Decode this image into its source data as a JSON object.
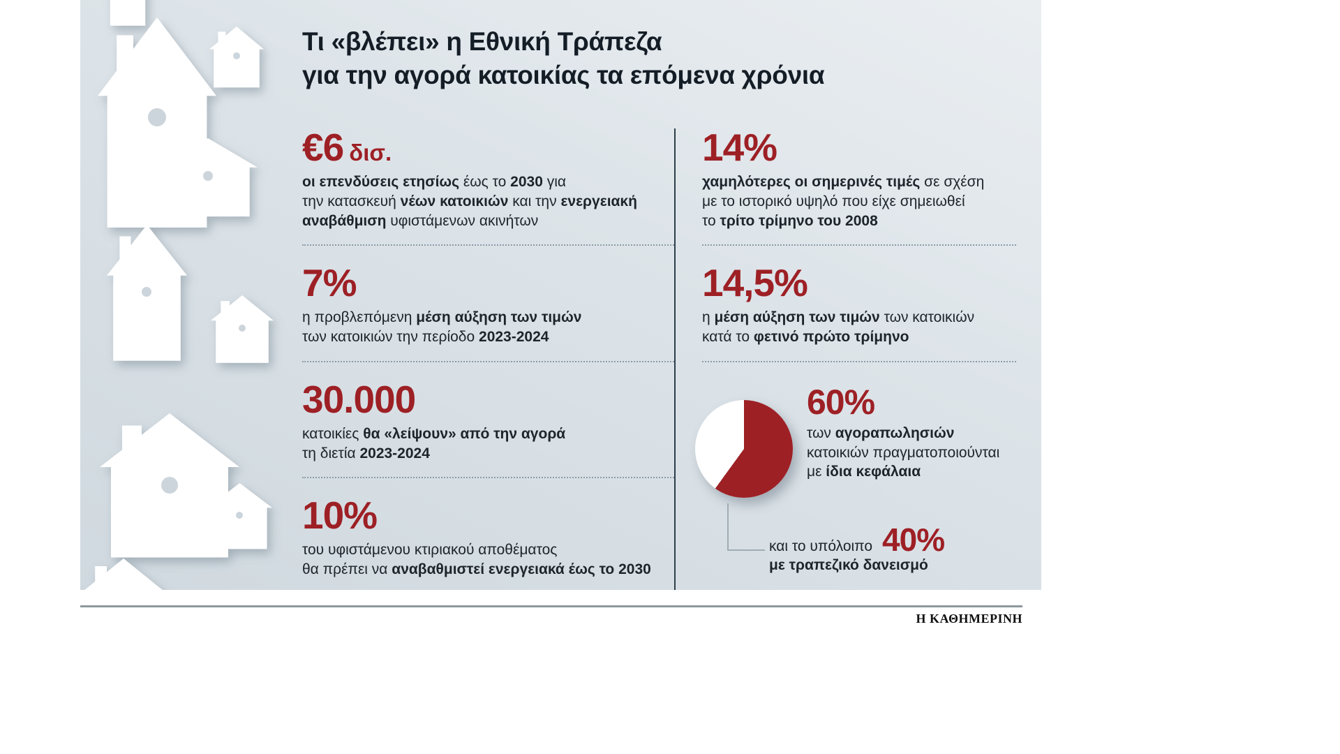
{
  "title": {
    "line1": "Τι «βλέπει» η Εθνική Τράπεζα",
    "line2": "για την αγορά κατοικίας τα επόμενα χρόνια"
  },
  "left_column": {
    "stats": [
      {
        "id": "annual-investments",
        "value": "€6",
        "unit": "δισ.",
        "desc": [
          {
            "t": "οι επενδύσεις ετησίως",
            "b": true
          },
          {
            "t": " έως το ",
            "b": false
          },
          {
            "t": "2030",
            "b": true
          },
          {
            "t": " για\nτην κατασκευή ",
            "b": false
          },
          {
            "t": "νέων κατοικιών",
            "b": true
          },
          {
            "t": " και την ",
            "b": false
          },
          {
            "t": "ενεργειακή\nαναβάθμιση",
            "b": true
          },
          {
            "t": " υφιστάμενων ακινήτων",
            "b": false
          }
        ]
      },
      {
        "id": "forecast-price-increase",
        "value": "7%",
        "desc": [
          {
            "t": "η προβλεπόμενη ",
            "b": false
          },
          {
            "t": "μέση αύξηση των τιμών",
            "b": true
          },
          {
            "t": "\nτων κατοικιών την περίοδο ",
            "b": false
          },
          {
            "t": "2023-2024",
            "b": true
          }
        ]
      },
      {
        "id": "missing-homes",
        "value": "30.000",
        "desc": [
          {
            "t": "κατοικίες ",
            "b": false
          },
          {
            "t": "θα «λείψουν» από την αγορά",
            "b": true
          },
          {
            "t": "\nτη διετία ",
            "b": false
          },
          {
            "t": "2023-2024",
            "b": true
          }
        ]
      },
      {
        "id": "energy-upgrade-share",
        "value": "10%",
        "desc": [
          {
            "t": "του υφιστάμενου κτιριακού αποθέματος\nθα πρέπει να ",
            "b": false
          },
          {
            "t": "αναβαθμιστεί ενεργειακά έως το 2030",
            "b": true
          }
        ]
      }
    ]
  },
  "right_column": {
    "stats": [
      {
        "id": "below-2008-peak",
        "value": "14%",
        "desc": [
          {
            "t": "χαμηλότερες οι σημερινές τιμές",
            "b": true
          },
          {
            "t": " σε σχέση\nμε το ιστορικό υψηλό που είχε σημειωθεί\nτο ",
            "b": false
          },
          {
            "t": "τρίτο τρίμηνο του 2008",
            "b": true
          }
        ]
      },
      {
        "id": "q1-price-increase",
        "value": "14,5%",
        "desc": [
          {
            "t": "η ",
            "b": false
          },
          {
            "t": "μέση αύξηση των τιμών",
            "b": true
          },
          {
            "t": " των κατοικιών\nκατά το ",
            "b": false
          },
          {
            "t": "φετινό πρώτο τρίμηνο",
            "b": true
          }
        ]
      }
    ],
    "pie": {
      "own_funds": {
        "value": "60%",
        "desc": [
          {
            "t": "των ",
            "b": false
          },
          {
            "t": "αγοραπωλησιών",
            "b": true
          },
          {
            "t": "\nκατοικιών πραγματοποιούνται\nμε ",
            "b": false
          },
          {
            "t": "ίδια κεφάλαια",
            "b": true
          }
        ]
      },
      "loans": {
        "prefix": "και το υπόλοιπο",
        "value": "40%",
        "suffix": "με τραπεζικό δανεισμό"
      }
    }
  },
  "footer": {
    "brand": "Η ΚΑΘΗΜΕΡΙΝΗ"
  },
  "colors": {
    "accent_red": "#9d2025",
    "panel_background": "#dde4e9",
    "title_text": "#141d26",
    "body_text": "#1d242b"
  },
  "decor": {
    "illustration": "paper-cut-houses"
  },
  "chart_data": {
    "type": "pie",
    "labels": [
      "με ίδια κεφάλαια",
      "με τραπεζικό δανεισμό"
    ],
    "values": [
      60,
      40
    ],
    "colors": [
      "#9d2025",
      "#ffffff"
    ],
    "legend_position": "right",
    "annotations": [
      "60% των αγοραπωλησιών κατοικιών πραγματοποιούνται με ίδια κεφάλαια",
      "και το υπόλοιπο 40% με τραπεζικό δανεισμό"
    ]
  }
}
